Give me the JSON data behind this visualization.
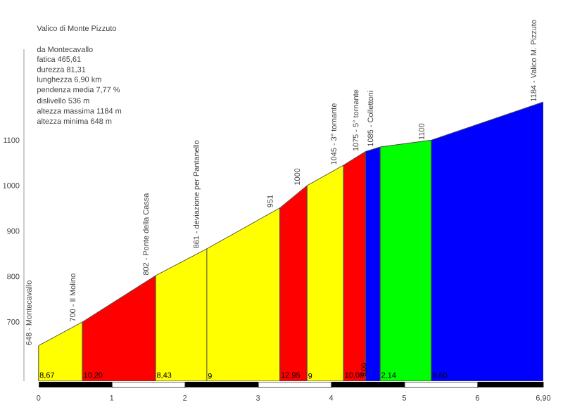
{
  "chart_data": {
    "type": "area",
    "title": "Valico di Monte Pizzuto",
    "annotations": [
      "da Montecavallo",
      "fatica 465,61",
      "durezza 81,31",
      "lunghezza 6,90 km",
      "pendenza media 7,77 %",
      "dislivello 536 m",
      "altezza massima 1184 m",
      "altezza minima 648 m",
      {
        "text": "648 - Montecavallo",
        "x": 0,
        "y": 648
      },
      {
        "text": "700 - Il Molino",
        "x": 0.6,
        "y": 700
      },
      {
        "text": "802 - Ponte della Cassa",
        "x": 1.6,
        "y": 802
      },
      {
        "text": "861 - deviazione per Pantanello",
        "x": 2.3,
        "y": 861
      },
      {
        "text": "951",
        "x": 3.3,
        "y": 951
      },
      {
        "text": "1000",
        "x": 3.67,
        "y": 1000
      },
      {
        "text": "1045 - 3° tornante",
        "x": 4.17,
        "y": 1045
      },
      {
        "text": "1075 - 5° tornante",
        "x": 4.47,
        "y": 1075
      },
      {
        "text": "1085 - Collettoni",
        "x": 4.67,
        "y": 1085
      },
      {
        "text": "1100",
        "x": 5.37,
        "y": 1100
      },
      {
        "text": "1184 - Valico M. Pizzuto",
        "x": 6.9,
        "y": 1184
      },
      {
        "text": "8,67",
        "x": 0
      },
      {
        "text": "10,20",
        "x": 0.6
      },
      {
        "text": "8,43",
        "x": 1.6
      },
      {
        "text": "9",
        "x": 2.3
      },
      {
        "text": "12,95",
        "x": 3.3
      },
      {
        "text": "9",
        "x": 3.67
      },
      {
        "text": "10,00",
        "x": 4.17
      },
      {
        "text": "5,00",
        "x": 4.47
      },
      {
        "text": "2,14",
        "x": 4.67
      },
      {
        "text": "5,60",
        "x": 5.37
      }
    ],
    "ref_lines": [
      {
        "axis": "x",
        "value": 2.3,
        "color": "#666633"
      }
    ],
    "xlim": [
      -0.2,
      6.9
    ],
    "ylim": [
      570,
      1300
    ],
    "xticks": [
      0,
      1,
      2,
      3,
      4,
      5,
      6,
      {
        "value": 6.9,
        "label": "6,90"
      }
    ],
    "yticks": [
      700,
      800,
      900,
      1000,
      1100
    ],
    "series": [
      {
        "color": "#ffff00",
        "x": [
          0,
          0.6
        ],
        "values": [
          648,
          700
        ]
      },
      {
        "color": "#ff0000",
        "x": [
          0.6,
          1.6
        ],
        "values": [
          700,
          802
        ]
      },
      {
        "color": "#ffff00",
        "x": [
          1.6,
          2.3,
          3.3
        ],
        "values": [
          802,
          861,
          951
        ]
      },
      {
        "color": "#ff0000",
        "x": [
          3.3,
          3.67
        ],
        "values": [
          951,
          1000
        ]
      },
      {
        "color": "#ffff00",
        "x": [
          3.67,
          4.17
        ],
        "values": [
          1000,
          1045
        ]
      },
      {
        "color": "#ff0000",
        "x": [
          4.17,
          4.47
        ],
        "values": [
          1045,
          1075
        ]
      },
      {
        "color": "#0000ff",
        "x": [
          4.47,
          4.67
        ],
        "values": [
          1075,
          1085
        ]
      },
      {
        "color": "#00ff00",
        "x": [
          4.67,
          5.37
        ],
        "values": [
          1085,
          1100
        ]
      },
      {
        "color": "#0000ff",
        "x": [
          5.37,
          6.9
        ],
        "values": [
          1100,
          1184
        ]
      }
    ]
  }
}
